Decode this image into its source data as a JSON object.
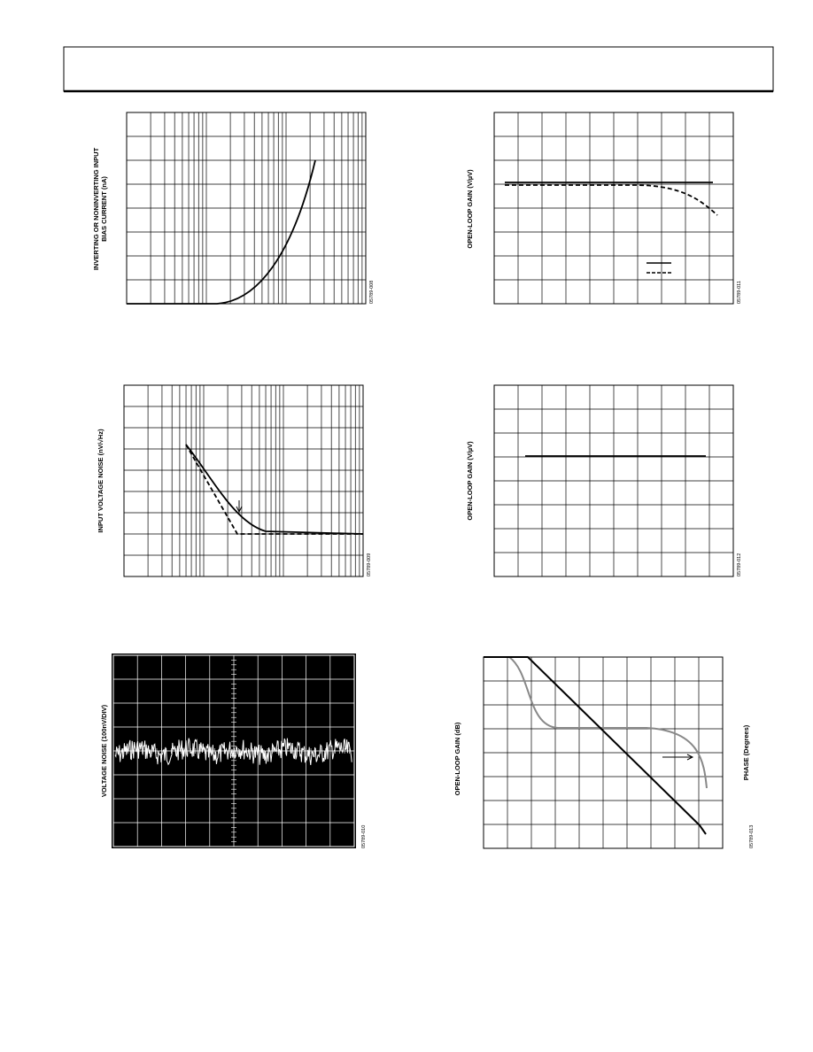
{
  "figures": [
    {
      "y_label": "INVERTING OR NONINVERTING INPUT",
      "y_label_line2": "BIAS CURRENT (nA)",
      "code": "05789-008"
    },
    {
      "y_label": "OPEN-LOOP GAIN (V/µV)",
      "code": "05789-011"
    },
    {
      "y_label": "INPUT VOLTAGE NOISE (nV/√Hz)",
      "code": "05789-009"
    },
    {
      "y_label": "OPEN-LOOP GAIN (V/µV)",
      "code": "05789-012"
    },
    {
      "y_label": "VOLTAGE NOISE (100nV/DIV)",
      "code": "05789-010"
    },
    {
      "y_label": "OPEN-LOOP GAIN (dB)",
      "y2_label": "PHASE (Degrees)",
      "code": "05789-013"
    }
  ]
}
